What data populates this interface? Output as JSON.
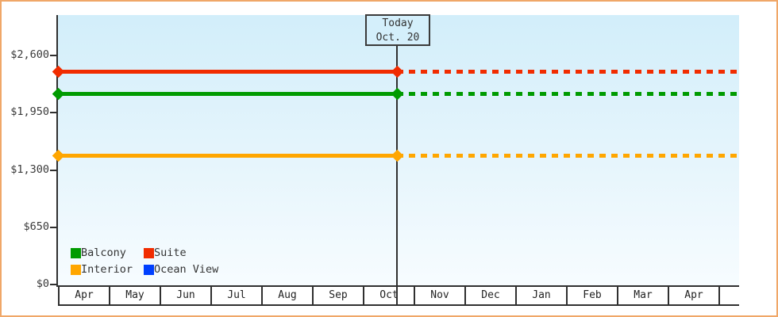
{
  "chart_data": {
    "type": "line",
    "y_axis": {
      "ticks": [
        {
          "label": "$2,600",
          "value": 2600
        },
        {
          "label": "$1,950",
          "value": 1950
        },
        {
          "label": "$1,300",
          "value": 1300
        },
        {
          "label": "$650",
          "value": 650
        },
        {
          "label": "$0",
          "value": 0
        }
      ],
      "range": [
        0,
        3060
      ]
    },
    "x_axis": {
      "months": [
        "Apr",
        "May",
        "Jun",
        "Jul",
        "Aug",
        "Sep",
        "Oct",
        "Nov",
        "Dec",
        "Jan",
        "Feb",
        "Mar",
        "Apr"
      ],
      "trailing_empty_cell": true
    },
    "today": {
      "line1": "Today",
      "line2": "Oct. 20",
      "month": "Oct"
    },
    "series": [
      {
        "name": "Suite",
        "color": "#f12c00",
        "value": 2420,
        "style": "solid-past-dashed-future"
      },
      {
        "name": "Balcony",
        "color": "#009b00",
        "value": 2160,
        "style": "solid-past-dashed-future"
      },
      {
        "name": "Interior",
        "color": "#ffa600",
        "value": 1460,
        "style": "solid-past-dashed-future"
      },
      {
        "name": "Ocean View",
        "color": "#0040ff",
        "value": null,
        "style": "not-plotted"
      }
    ],
    "legend": [
      {
        "label": "Balcony",
        "color": "#009b00"
      },
      {
        "label": "Suite",
        "color": "#f12c00"
      },
      {
        "label": "Interior",
        "color": "#ffa600"
      },
      {
        "label": "Ocean View",
        "color": "#0040ff"
      }
    ],
    "colors": {
      "frame_border": "#f0a768",
      "axis": "#303030",
      "plot_bg_top": "#d2eefa",
      "plot_bg_bottom": "#f7fcff",
      "label_text": "#3a3a3a",
      "today_box_bg": "#d4effb"
    }
  }
}
